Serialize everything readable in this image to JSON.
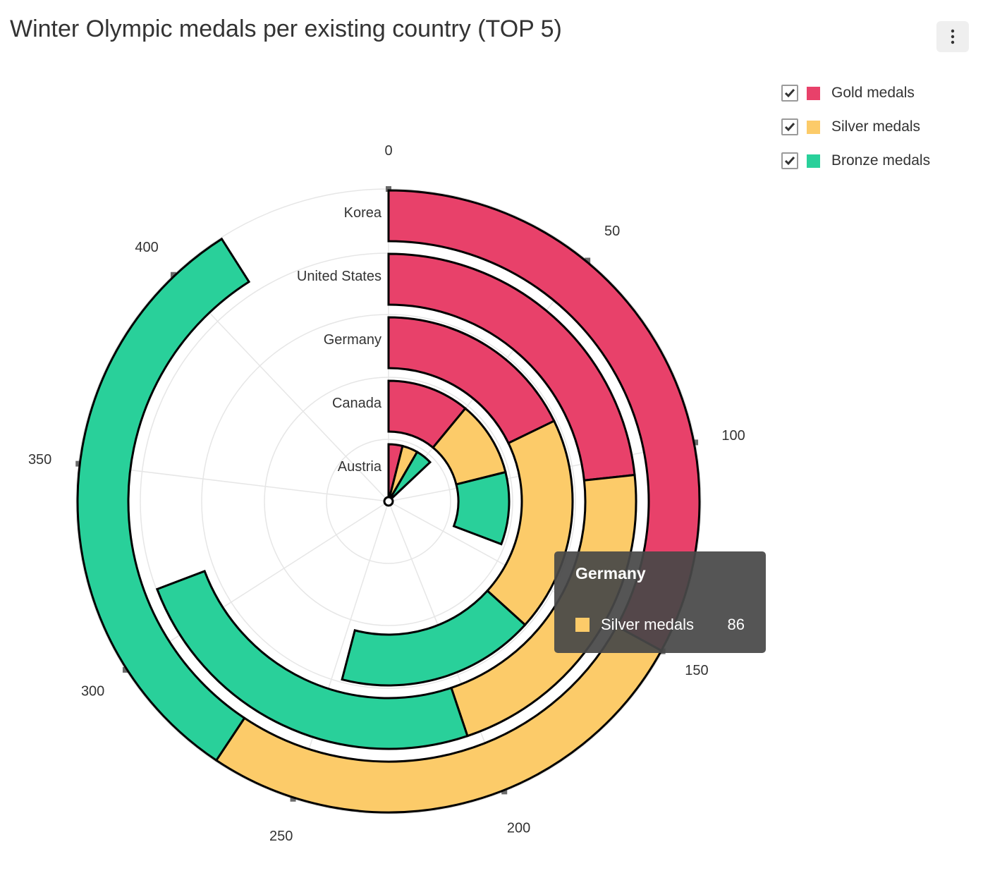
{
  "title": "Winter Olympic medals per existing country (TOP 5)",
  "menu": {
    "icon": "more-vertical-icon"
  },
  "colors": {
    "gold": "#e8416a",
    "silver": "#fccb69",
    "bronze": "#29d09a",
    "grid": "#e6e6e6"
  },
  "chart_data": {
    "type": "radial-stacked-bar",
    "categories": [
      "Austria",
      "Canada",
      "Germany",
      "United States",
      "Korea"
    ],
    "series": [
      {
        "name": "Gold medals",
        "color": "#e8416a",
        "checked": true,
        "values": [
          18,
          50,
          81,
          106,
          150
        ]
      },
      {
        "name": "Silver medals",
        "color": "#fccb69",
        "checked": true,
        "values": [
          20,
          46,
          86,
          98,
          120
        ]
      },
      {
        "name": "Bronze medals",
        "color": "#29d09a",
        "checked": true,
        "values": [
          21,
          44,
          79,
          111,
          144
        ]
      }
    ],
    "angular_axis": {
      "min": 0,
      "max": 455,
      "ticks": [
        0,
        50,
        100,
        150,
        200,
        250,
        300,
        350,
        400
      ]
    },
    "legend_position": "top-right"
  },
  "tooltip": {
    "country": "Germany",
    "series": "Silver medals",
    "value": "86",
    "color": "#fccb69"
  }
}
